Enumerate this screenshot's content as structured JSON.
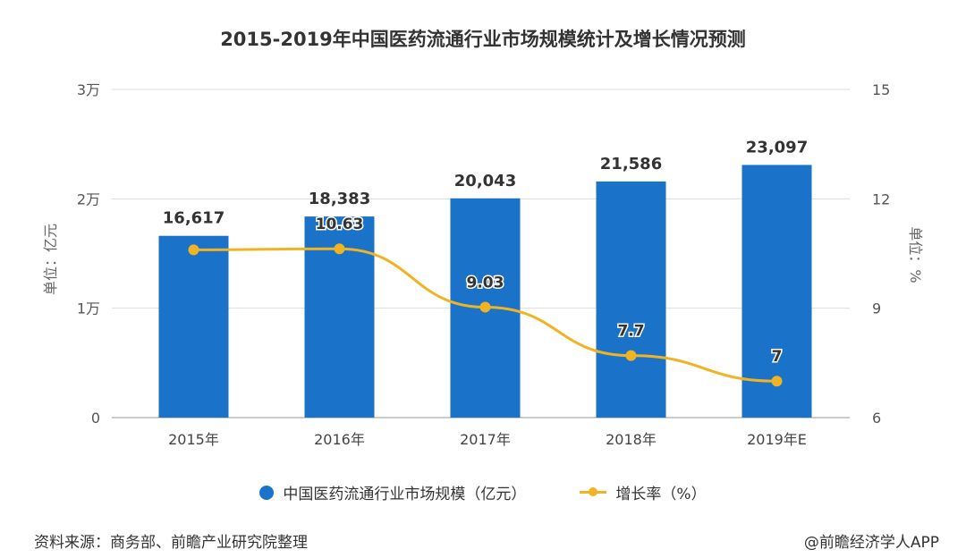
{
  "chart_data": {
    "type": "bar",
    "title": "2015-2019年中国医药流通行业市场规模统计及增长情况预测",
    "categories": [
      "2015年",
      "2016年",
      "2017年",
      "2018年",
      "2019年E"
    ],
    "series": [
      {
        "name": "中国医药流通行业市场规模（亿元）",
        "type": "bar",
        "axis": "left",
        "values": [
          16617,
          18383,
          20043,
          21586,
          23097
        ],
        "labels": [
          "16,617",
          "18,383",
          "20,043",
          "21,586",
          "23,097"
        ],
        "color": "#1a73c8"
      },
      {
        "name": "增长率（%）",
        "type": "line",
        "axis": "right",
        "values": [
          10.6,
          10.63,
          9.03,
          7.7,
          7
        ],
        "labels": [
          "",
          "10.63",
          "9.03",
          "7.7",
          "7"
        ],
        "color": "#f0b323"
      }
    ],
    "left_axis": {
      "label": "单位：亿元",
      "ylim": [
        0,
        30000
      ],
      "ticks": [
        "0",
        "1万",
        "2万",
        "3万"
      ]
    },
    "right_axis": {
      "label": "单位：%",
      "ylim": [
        6,
        15
      ],
      "ticks": [
        "6",
        "9",
        "12",
        "15"
      ]
    },
    "grid": true,
    "legend_position": "bottom"
  },
  "source": "资料来源：商务部、前瞻产业研究院整理",
  "credit": "@前瞻经济学人APP"
}
